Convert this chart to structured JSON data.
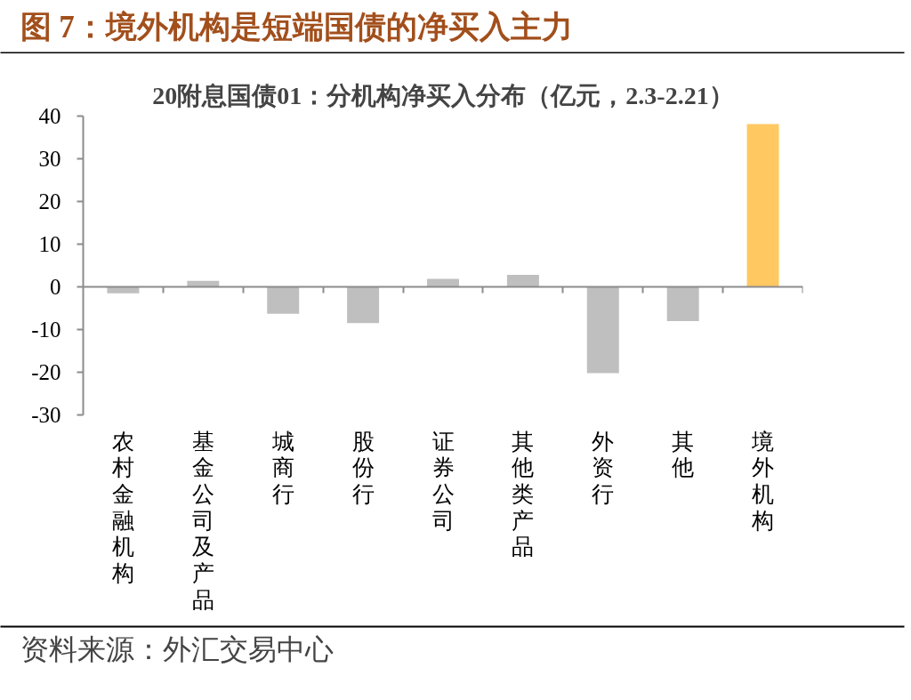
{
  "chart_data": {
    "type": "bar",
    "title": "图 7：境外机构是短端国债的净买入主力",
    "subtitle": "20附息国债01：分机构净买入分布（亿元，2.3-2.21）",
    "categories": [
      "农村金融机构",
      "基金公司及产品",
      "城商行",
      "股份行",
      "证券公司",
      "其他类产品",
      "外资行",
      "其他",
      "境外机构"
    ],
    "values": [
      -1.5,
      1.4,
      -6.3,
      -8.5,
      1.9,
      2.8,
      -20.2,
      -8.0,
      38.1
    ],
    "colors": [
      "#bfbfbf",
      "#bfbfbf",
      "#bfbfbf",
      "#bfbfbf",
      "#bfbfbf",
      "#bfbfbf",
      "#bfbfbf",
      "#bfbfbf",
      "#ffc861"
    ],
    "ylim": [
      -30,
      40
    ],
    "yticks": [
      -30,
      -20,
      -10,
      0,
      10,
      20,
      30,
      40
    ],
    "grid": false,
    "ref_lines": [
      {
        "axis": "y",
        "value": 0,
        "color": "#8c8c8c"
      }
    ],
    "annotations": [
      "资料来源：外汇交易中心"
    ]
  }
}
